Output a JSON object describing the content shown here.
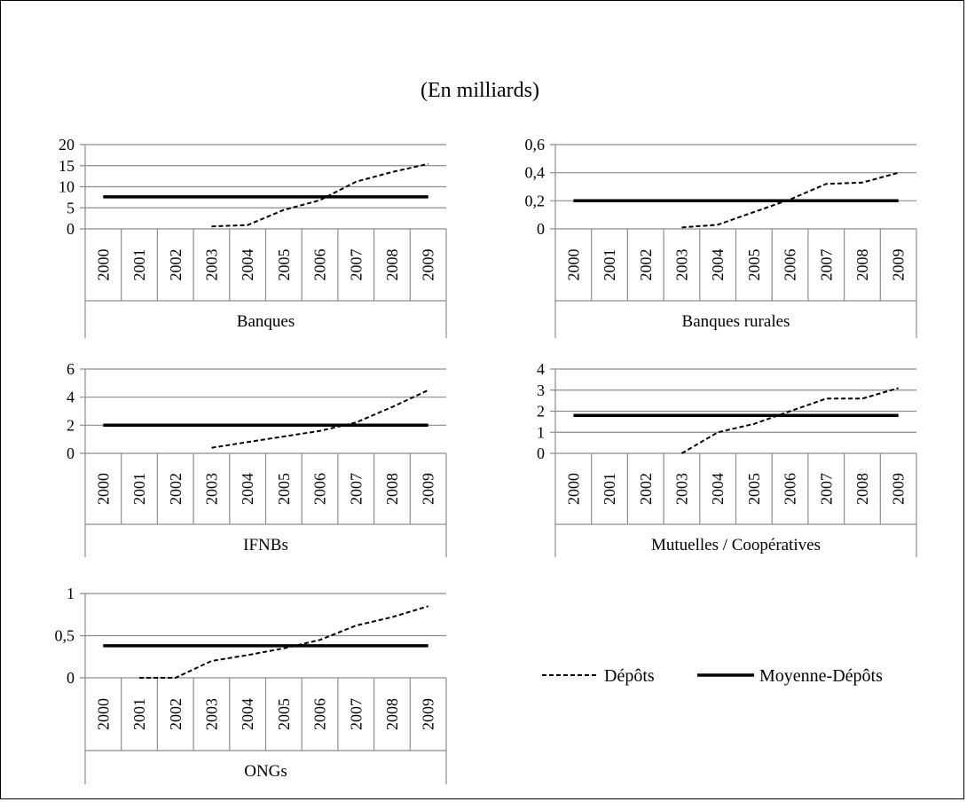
{
  "title": "(En milliards)",
  "legend": {
    "items": [
      {
        "label": "Dépôts",
        "style": "dashed"
      },
      {
        "label": "Moyenne-Dépôts",
        "style": "solid"
      }
    ]
  },
  "chart_data": [
    {
      "type": "line",
      "category": "Banques",
      "x": [
        "2000",
        "2001",
        "2002",
        "2003",
        "2004",
        "2005",
        "2006",
        "2007",
        "2008",
        "2009"
      ],
      "y_ticks": [
        "0",
        "5",
        "10",
        "15",
        "20"
      ],
      "ylim": [
        0,
        20
      ],
      "grid": true,
      "series": [
        {
          "name": "Dépôts",
          "values": [
            null,
            null,
            null,
            0.6,
            0.9,
            4.5,
            6.8,
            11.2,
            13.5,
            15.4
          ]
        },
        {
          "name": "Moyenne-Dépôts",
          "values": [
            7.6,
            7.6,
            7.6,
            7.6,
            7.6,
            7.6,
            7.6,
            7.6,
            7.6,
            7.6
          ]
        }
      ]
    },
    {
      "type": "line",
      "category": "Banques rurales",
      "x": [
        "2000",
        "2001",
        "2002",
        "2003",
        "2004",
        "2005",
        "2006",
        "2007",
        "2008",
        "2009"
      ],
      "y_ticks": [
        "0",
        "0,2",
        "0,4",
        "0,6"
      ],
      "ylim": [
        0,
        0.6
      ],
      "grid": true,
      "series": [
        {
          "name": "Dépôts",
          "values": [
            null,
            null,
            null,
            0.01,
            0.03,
            0.12,
            0.21,
            0.32,
            0.33,
            0.4
          ]
        },
        {
          "name": "Moyenne-Dépôts",
          "values": [
            0.2,
            0.2,
            0.2,
            0.2,
            0.2,
            0.2,
            0.2,
            0.2,
            0.2,
            0.2
          ]
        }
      ]
    },
    {
      "type": "line",
      "category": "IFNBs",
      "x": [
        "2000",
        "2001",
        "2002",
        "2003",
        "2004",
        "2005",
        "2006",
        "2007",
        "2008",
        "2009"
      ],
      "y_ticks": [
        "0",
        "2",
        "4",
        "6"
      ],
      "ylim": [
        0,
        6
      ],
      "grid": true,
      "series": [
        {
          "name": "Dépôts",
          "values": [
            null,
            null,
            null,
            0.4,
            0.8,
            1.2,
            1.6,
            2.2,
            3.3,
            4.5
          ]
        },
        {
          "name": "Moyenne-Dépôts",
          "values": [
            2,
            2,
            2,
            2,
            2,
            2,
            2,
            2,
            2,
            2
          ]
        }
      ]
    },
    {
      "type": "line",
      "category": "Mutuelles / Coopératives",
      "x": [
        "2000",
        "2001",
        "2002",
        "2003",
        "2004",
        "2005",
        "2006",
        "2007",
        "2008",
        "2009"
      ],
      "y_ticks": [
        "0",
        "1",
        "2",
        "3",
        "4"
      ],
      "ylim": [
        0,
        4
      ],
      "grid": true,
      "series": [
        {
          "name": "Dépôts",
          "values": [
            null,
            null,
            null,
            0.0,
            1.0,
            1.4,
            2.0,
            2.6,
            2.6,
            3.1
          ]
        },
        {
          "name": "Moyenne-Dépôts",
          "values": [
            1.8,
            1.8,
            1.8,
            1.8,
            1.8,
            1.8,
            1.8,
            1.8,
            1.8,
            1.8
          ]
        }
      ]
    },
    {
      "type": "line",
      "category": "ONGs",
      "x": [
        "2000",
        "2001",
        "2002",
        "2003",
        "2004",
        "2005",
        "2006",
        "2007",
        "2008",
        "2009"
      ],
      "y_ticks": [
        "0",
        "0,5",
        "1"
      ],
      "ylim": [
        0,
        1
      ],
      "grid": true,
      "series": [
        {
          "name": "Dépôts",
          "values": [
            null,
            0.0,
            0.0,
            0.2,
            0.27,
            0.35,
            0.45,
            0.62,
            0.72,
            0.85
          ]
        },
        {
          "name": "Moyenne-Dépôts",
          "values": [
            0.38,
            0.38,
            0.38,
            0.38,
            0.38,
            0.38,
            0.38,
            0.38,
            0.38,
            0.38
          ]
        }
      ]
    }
  ]
}
